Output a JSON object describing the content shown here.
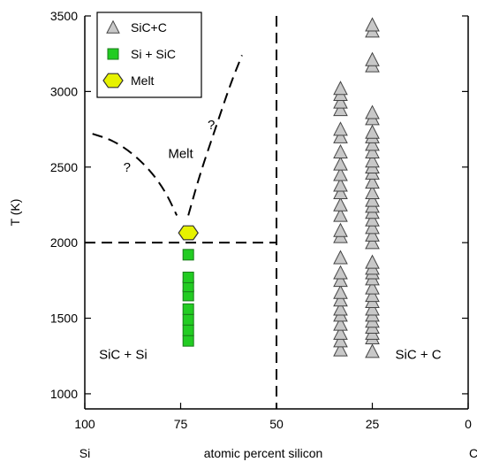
{
  "chart_data": {
    "type": "scatter",
    "title": "",
    "xlabel": "atomic percent silicon",
    "ylabel": "T (K)",
    "xlim": [
      100,
      0
    ],
    "ylim": [
      900,
      3500
    ],
    "x_ticks": [
      100,
      75,
      50,
      25,
      0
    ],
    "y_ticks": [
      1000,
      1500,
      2000,
      2500,
      3000,
      3500
    ],
    "x_end_labels": {
      "left": "Si",
      "right": "C"
    },
    "grid": false,
    "legend_position": "top-left",
    "series": [
      {
        "name": "SiC+C",
        "marker": "triangle",
        "color": "#c8c8c8",
        "points": [
          [
            33.3,
            1290
          ],
          [
            33.3,
            1350
          ],
          [
            33.3,
            1400
          ],
          [
            33.3,
            1460
          ],
          [
            33.3,
            1520
          ],
          [
            33.3,
            1560
          ],
          [
            33.3,
            1620
          ],
          [
            33.3,
            1670
          ],
          [
            33.3,
            1750
          ],
          [
            33.3,
            1800
          ],
          [
            33.3,
            1900
          ],
          [
            33.3,
            2040
          ],
          [
            33.3,
            2080
          ],
          [
            33.3,
            2180
          ],
          [
            33.3,
            2250
          ],
          [
            33.3,
            2330
          ],
          [
            33.3,
            2380
          ],
          [
            33.3,
            2450
          ],
          [
            33.3,
            2520
          ],
          [
            33.3,
            2600
          ],
          [
            33.3,
            2700
          ],
          [
            33.3,
            2750
          ],
          [
            33.3,
            2880
          ],
          [
            33.3,
            2930
          ],
          [
            33.3,
            2980
          ],
          [
            33.3,
            3020
          ],
          [
            25,
            1280
          ],
          [
            25,
            1370
          ],
          [
            25,
            1400
          ],
          [
            25,
            1440
          ],
          [
            25,
            1480
          ],
          [
            25,
            1520
          ],
          [
            25,
            1560
          ],
          [
            25,
            1610
          ],
          [
            25,
            1650
          ],
          [
            25,
            1700
          ],
          [
            25,
            1760
          ],
          [
            25,
            1800
          ],
          [
            25,
            1830
          ],
          [
            25,
            1870
          ],
          [
            25,
            2000
          ],
          [
            25,
            2050
          ],
          [
            25,
            2100
          ],
          [
            25,
            2150
          ],
          [
            25,
            2200
          ],
          [
            25,
            2240
          ],
          [
            25,
            2280
          ],
          [
            25,
            2330
          ],
          [
            25,
            2400
          ],
          [
            25,
            2460
          ],
          [
            25,
            2500
          ],
          [
            25,
            2540
          ],
          [
            25,
            2600
          ],
          [
            25,
            2650
          ],
          [
            25,
            2700
          ],
          [
            25,
            2730
          ],
          [
            25,
            2820
          ],
          [
            25,
            2860
          ],
          [
            25,
            3170
          ],
          [
            25,
            3210
          ],
          [
            25,
            3400
          ],
          [
            25,
            3440
          ]
        ]
      },
      {
        "name": "Si + SiC",
        "marker": "square",
        "color": "#22cc22",
        "points": [
          [
            73,
            1350
          ],
          [
            73,
            1420
          ],
          [
            73,
            1490
          ],
          [
            73,
            1560
          ],
          [
            73,
            1650
          ],
          [
            73,
            1710
          ],
          [
            73,
            1770
          ],
          [
            73,
            1920
          ]
        ]
      },
      {
        "name": "Melt",
        "marker": "hexagon",
        "color": "#e6f200",
        "points": [
          [
            73,
            2065
          ]
        ]
      }
    ],
    "boundaries": {
      "vertical_dashed_x": 50,
      "horizontal_dashed_y": 2000,
      "curve_left": [
        [
          98,
          2720
        ],
        [
          93,
          2680
        ],
        [
          88,
          2600
        ],
        [
          83,
          2480
        ],
        [
          79,
          2340
        ],
        [
          76,
          2180
        ]
      ],
      "curve_right": [
        [
          73,
          2180
        ],
        [
          70,
          2450
        ],
        [
          66,
          2750
        ],
        [
          62,
          3050
        ],
        [
          59,
          3240
        ]
      ]
    },
    "annotations": [
      {
        "text": "Melt",
        "x": 75,
        "y": 2560
      },
      {
        "text": "?",
        "x": 89,
        "y": 2470
      },
      {
        "text": "?",
        "x": 67,
        "y": 2750
      },
      {
        "text": "SiC + Si",
        "x": 90,
        "y": 1230
      },
      {
        "text": "SiC + C",
        "x": 13,
        "y": 1230
      }
    ]
  }
}
